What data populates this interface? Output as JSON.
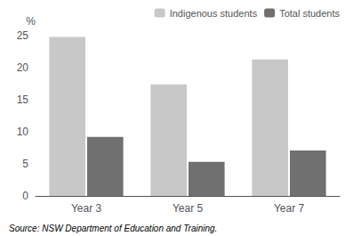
{
  "chart_data": {
    "type": "bar",
    "categories": [
      "Year 3",
      "Year 5",
      "Year 7"
    ],
    "series": [
      {
        "name": "Indigenous students",
        "color": "#c8c8c8",
        "values": [
          24.8,
          17.4,
          21.3
        ]
      },
      {
        "name": "Total students",
        "color": "#707070",
        "values": [
          9.2,
          5.3,
          7.1
        ]
      }
    ],
    "ylabel": "%",
    "ylim": [
      0,
      25
    ],
    "yticks": [
      0,
      5,
      10,
      15,
      20,
      25
    ],
    "grid": false,
    "legend": "upper right",
    "annotations": [
      "Source: NSW Department of Education and Training."
    ]
  }
}
